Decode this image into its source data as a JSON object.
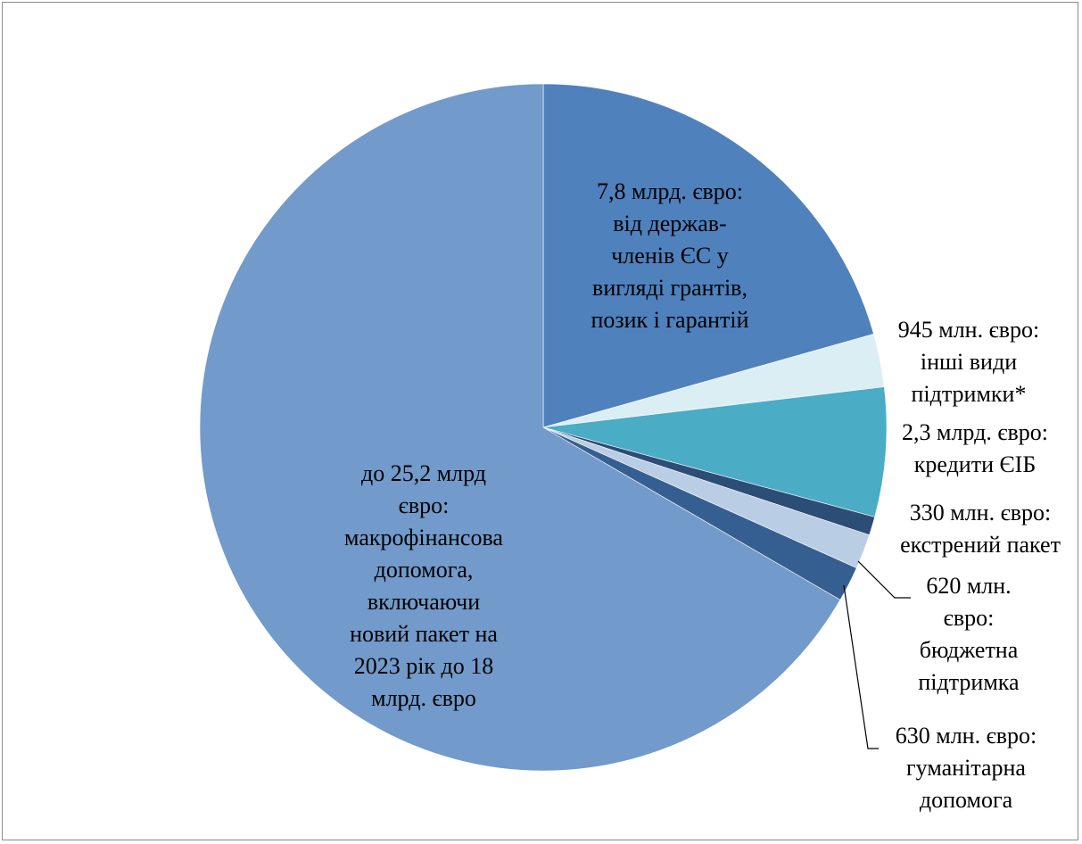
{
  "chart_data": {
    "type": "pie",
    "title": "",
    "unit": "млн. євро",
    "slices": [
      {
        "value": 7800,
        "color": "#4f81bd",
        "label": [
          "7,8 млрд. євро:",
          "від держав-",
          "членів ЄС у",
          "вигляді грантів,",
          "позик і гарантій"
        ]
      },
      {
        "value": 945,
        "color": "#dbeef4",
        "label": [
          "945 млн. євро:",
          "інші види",
          "підтримки*"
        ]
      },
      {
        "value": 2300,
        "color": "#4bacc6",
        "label": [
          "2,3 млрд. євро:",
          "кредити ЄІБ"
        ]
      },
      {
        "value": 330,
        "color": "#2c4d75",
        "label": [
          "330 млн. євро:",
          "екстрений пакет"
        ]
      },
      {
        "value": 620,
        "color": "#b9cde5",
        "label": [
          "620 млн.",
          "євро:",
          "бюджетна",
          "підтримка"
        ]
      },
      {
        "value": 630,
        "color": "#365f91",
        "label": [
          "630 млн. євро:",
          "гуманітарна",
          "допомога"
        ]
      },
      {
        "value": 25200,
        "color": "#729aca",
        "label": [
          "до 25,2 млрд",
          "євро:",
          "макрофінансова",
          "допомога,",
          "включаючи",
          "новий пакет на",
          "2023 рік до 18",
          "млрд. євро"
        ]
      }
    ]
  }
}
